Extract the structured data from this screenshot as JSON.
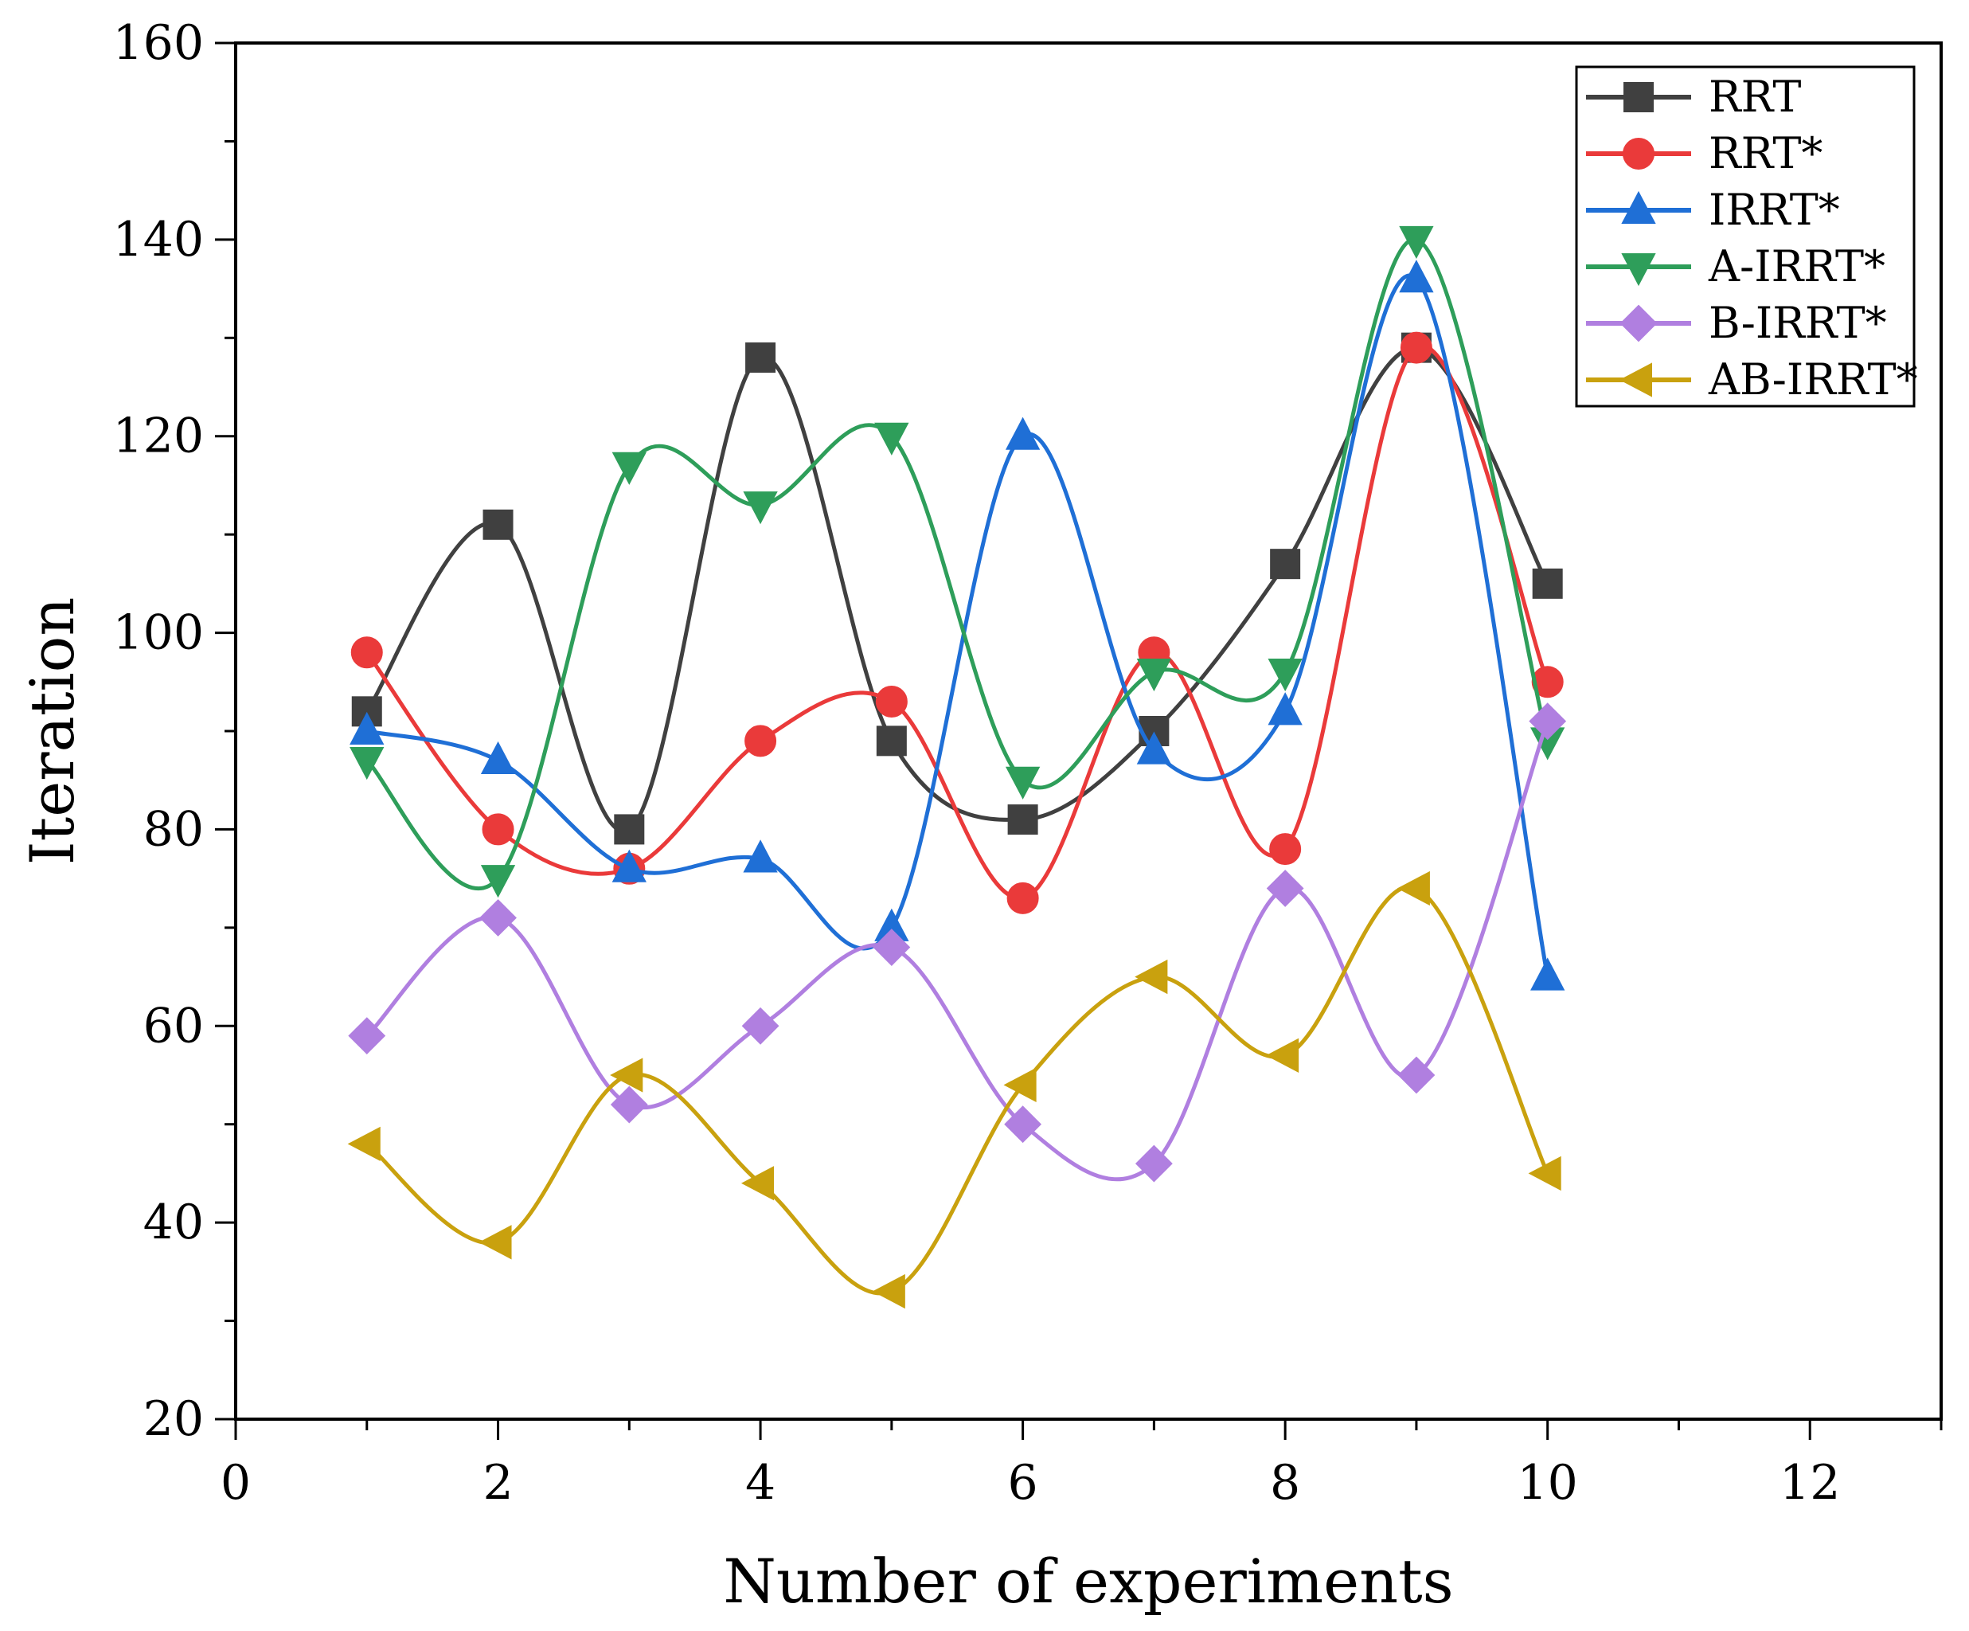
{
  "chart_data": {
    "type": "line",
    "title": "",
    "xlabel": "Number of experiments",
    "ylabel": "Iteration",
    "xlim": [
      0,
      13
    ],
    "ylim": [
      20,
      160
    ],
    "xticks": [
      0,
      2,
      4,
      6,
      8,
      10,
      12
    ],
    "yticks": [
      20,
      40,
      60,
      80,
      100,
      120,
      140,
      160
    ],
    "xtick_labels": [
      "0",
      "2",
      "4",
      "6",
      "8",
      "10",
      "12"
    ],
    "ytick_labels": [
      "20",
      "40",
      "60",
      "80",
      "100",
      "120",
      "140",
      "160"
    ],
    "grid": false,
    "legend_position": "top-right",
    "smooth": true,
    "x": [
      1,
      2,
      3,
      4,
      5,
      6,
      7,
      8,
      9,
      10
    ],
    "series": [
      {
        "name": "RRT",
        "color": "#404040",
        "marker": "square",
        "values": [
          92,
          111,
          80,
          128,
          89,
          81,
          90,
          107,
          129,
          105
        ]
      },
      {
        "name": "RRT*",
        "color": "#ea3a3a",
        "marker": "circle",
        "values": [
          98,
          80,
          76,
          89,
          93,
          73,
          98,
          78,
          129,
          95
        ]
      },
      {
        "name": "IRRT*",
        "color": "#1f6fd6",
        "marker": "triangle-up",
        "values": [
          90,
          87,
          76,
          77,
          70,
          120,
          88,
          92,
          136,
          65
        ]
      },
      {
        "name": "A-IRRT*",
        "color": "#2e9e5a",
        "marker": "triangle-down",
        "values": [
          87,
          75,
          117,
          113,
          120,
          85,
          96,
          96,
          140,
          89
        ]
      },
      {
        "name": "B-IRRT*",
        "color": "#b07fe0",
        "marker": "diamond",
        "values": [
          59,
          71,
          52,
          60,
          68,
          50,
          46,
          74,
          55,
          91
        ]
      },
      {
        "name": "AB-IRRT*",
        "color": "#c9a10e",
        "marker": "triangle-left",
        "values": [
          48,
          38,
          55,
          44,
          33,
          54,
          65,
          57,
          74,
          45
        ]
      }
    ]
  }
}
